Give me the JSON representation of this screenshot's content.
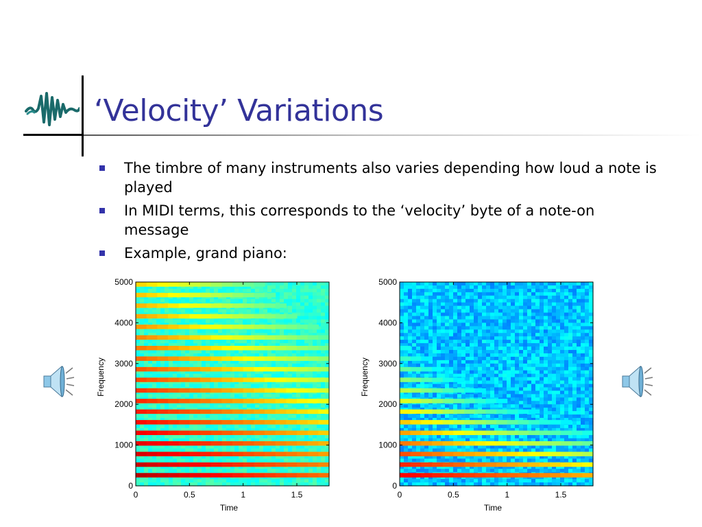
{
  "slide": {
    "title": "‘Velocity’ Variations",
    "bullets": [
      "The timbre of many instruments also varies depending how loud a note is played",
      "In MIDI terms, this corresponds to the ‘velocity’ byte of a note-on message",
      "Example, grand piano:"
    ],
    "accent_color": "#333399",
    "bullet_color": "#3333aa"
  },
  "icons": {
    "logo": "waveform-logo-icon",
    "left_speaker": "speaker-icon",
    "right_speaker": "speaker-icon"
  },
  "chart_data": [
    {
      "type": "heatmap",
      "title": "",
      "xlabel": "Time",
      "ylabel": "Frequency",
      "xlim": [
        0,
        1.8
      ],
      "ylim": [
        0,
        5000
      ],
      "xticks": [
        "0",
        "0.5",
        "1",
        "1.5"
      ],
      "yticks": [
        "0",
        "1000",
        "2000",
        "3000",
        "4000",
        "5000"
      ],
      "harmonic_spacing_hz": 260,
      "harmonics_up_to_hz": 5000,
      "colormap": "jet",
      "background_level": "green",
      "grid": false
    },
    {
      "type": "heatmap",
      "title": "",
      "xlabel": "Time",
      "ylabel": "Frequency",
      "xlim": [
        0,
        1.8
      ],
      "ylim": [
        0,
        5000
      ],
      "xticks": [
        "0",
        "0.5",
        "1",
        "1.5"
      ],
      "yticks": [
        "0",
        "1000",
        "2000",
        "3000",
        "4000",
        "5000"
      ],
      "harmonic_spacing_hz": 260,
      "harmonics_up_to_hz": 3500,
      "colormap": "jet",
      "background_level": "light-blue",
      "grid": false
    }
  ]
}
